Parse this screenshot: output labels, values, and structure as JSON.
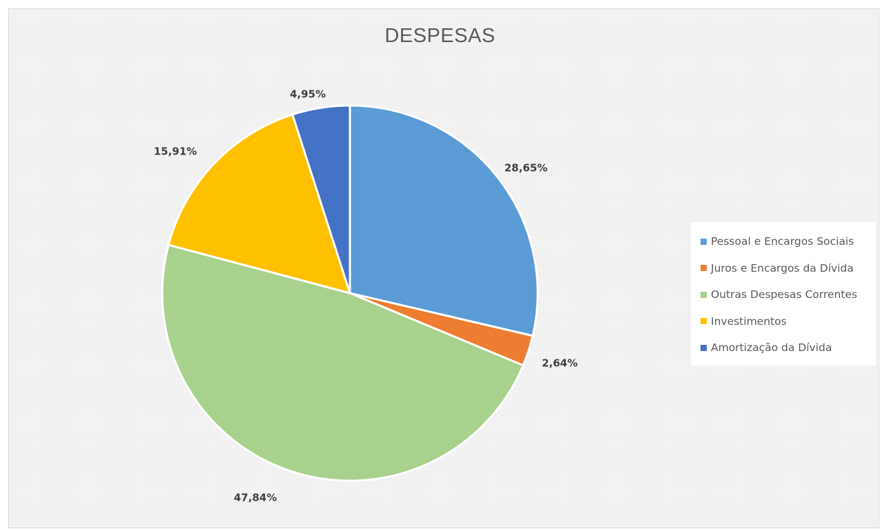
{
  "chart_data": {
    "type": "pie",
    "title": "DESPESAS",
    "legend_position": "right",
    "start_angle_deg": 0,
    "direction": "clockwise",
    "slices": [
      {
        "label": "Pessoal e Encargos Sociais",
        "value": 28.65,
        "display": "28,65%",
        "color": "#5b9bd5"
      },
      {
        "label": "Juros e Encargos da Dívida",
        "value": 2.64,
        "display": "2,64%",
        "color": "#ed7d31"
      },
      {
        "label": "Outras Despesas Correntes",
        "value": 47.84,
        "display": "47,84%",
        "color": "#a9d18e"
      },
      {
        "label": "Investimentos",
        "value": 15.91,
        "display": "15,91%",
        "color": "#ffc000"
      },
      {
        "label": "Amortização da Dívida",
        "value": 4.95,
        "display": "4,95%",
        "color": "#4472c4"
      }
    ]
  }
}
